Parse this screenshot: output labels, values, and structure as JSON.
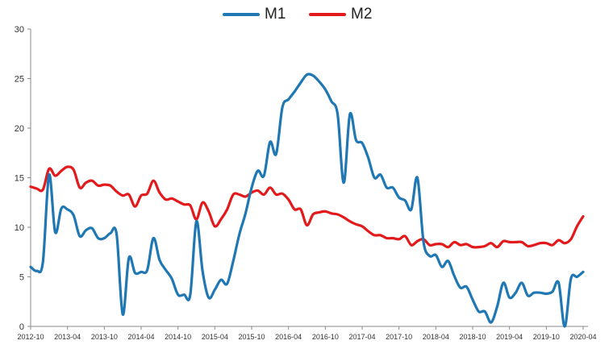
{
  "colors": {
    "m1": "#1f77b4",
    "m2": "#e31a1c",
    "axis": "#8a8a8a",
    "text": "#333333"
  },
  "chart_data": {
    "type": "line",
    "title": "",
    "xlabel": "",
    "ylabel": "",
    "ylim": [
      0,
      30
    ],
    "yticks": [
      "0",
      "5",
      "10",
      "15",
      "20",
      "25",
      "30"
    ],
    "grid": false,
    "legend_position": "top-center",
    "x_tick_labels": [
      "2012-10",
      "2013-04",
      "2013-10",
      "2014-04",
      "2014-10",
      "2015-04",
      "2015-10",
      "2016-04",
      "2016-10",
      "2017-04",
      "2017-10",
      "2018-04",
      "2018-10",
      "2019-04",
      "2019-10",
      "2020-04"
    ],
    "series": [
      {
        "name": "M1",
        "color": "#1f77b4",
        "points": [
          [
            "2012-10",
            6.0
          ],
          [
            "2012-11",
            5.6
          ],
          [
            "2012-12",
            6.5
          ],
          [
            "2013-01",
            15.3
          ],
          [
            "2013-02",
            9.5
          ],
          [
            "2013-03",
            11.9
          ],
          [
            "2013-04",
            11.8
          ],
          [
            "2013-05",
            11.2
          ],
          [
            "2013-06",
            9.1
          ],
          [
            "2013-07",
            9.7
          ],
          [
            "2013-08",
            9.9
          ],
          [
            "2013-09",
            8.9
          ],
          [
            "2013-10",
            8.9
          ],
          [
            "2013-11",
            9.4
          ],
          [
            "2013-12",
            9.3
          ],
          [
            "2014-01",
            1.2
          ],
          [
            "2014-02",
            6.9
          ],
          [
            "2014-03",
            5.4
          ],
          [
            "2014-04",
            5.5
          ],
          [
            "2014-05",
            5.7
          ],
          [
            "2014-06",
            8.9
          ],
          [
            "2014-07",
            6.7
          ],
          [
            "2014-08",
            5.7
          ],
          [
            "2014-09",
            4.8
          ],
          [
            "2014-10",
            3.2
          ],
          [
            "2014-11",
            3.2
          ],
          [
            "2014-12",
            3.2
          ],
          [
            "2015-01",
            10.6
          ],
          [
            "2015-02",
            5.6
          ],
          [
            "2015-03",
            2.9
          ],
          [
            "2015-04",
            3.7
          ],
          [
            "2015-05",
            4.7
          ],
          [
            "2015-06",
            4.3
          ],
          [
            "2015-07",
            6.6
          ],
          [
            "2015-08",
            9.3
          ],
          [
            "2015-09",
            11.4
          ],
          [
            "2015-10",
            14.0
          ],
          [
            "2015-11",
            15.7
          ],
          [
            "2015-12",
            15.2
          ],
          [
            "2016-01",
            18.6
          ],
          [
            "2016-02",
            17.4
          ],
          [
            "2016-03",
            22.1
          ],
          [
            "2016-04",
            22.9
          ],
          [
            "2016-05",
            23.7
          ],
          [
            "2016-06",
            24.6
          ],
          [
            "2016-07",
            25.4
          ],
          [
            "2016-08",
            25.3
          ],
          [
            "2016-09",
            24.7
          ],
          [
            "2016-10",
            23.9
          ],
          [
            "2016-11",
            22.7
          ],
          [
            "2016-12",
            21.4
          ],
          [
            "2017-01",
            14.5
          ],
          [
            "2017-02",
            21.4
          ],
          [
            "2017-03",
            18.8
          ],
          [
            "2017-04",
            18.5
          ],
          [
            "2017-05",
            17.0
          ],
          [
            "2017-06",
            15.0
          ],
          [
            "2017-07",
            15.3
          ],
          [
            "2017-08",
            14.0
          ],
          [
            "2017-09",
            14.0
          ],
          [
            "2017-10",
            13.0
          ],
          [
            "2017-11",
            12.7
          ],
          [
            "2017-12",
            11.8
          ],
          [
            "2018-01",
            15.0
          ],
          [
            "2018-02",
            8.5
          ],
          [
            "2018-03",
            7.1
          ],
          [
            "2018-04",
            7.2
          ],
          [
            "2018-05",
            6.0
          ],
          [
            "2018-06",
            6.6
          ],
          [
            "2018-07",
            5.1
          ],
          [
            "2018-08",
            3.9
          ],
          [
            "2018-09",
            4.0
          ],
          [
            "2018-10",
            2.7
          ],
          [
            "2018-11",
            1.5
          ],
          [
            "2018-12",
            1.5
          ],
          [
            "2019-01",
            0.4
          ],
          [
            "2019-02",
            2.0
          ],
          [
            "2019-03",
            4.4
          ],
          [
            "2019-04",
            2.9
          ],
          [
            "2019-05",
            3.4
          ],
          [
            "2019-06",
            4.4
          ],
          [
            "2019-07",
            3.1
          ],
          [
            "2019-08",
            3.4
          ],
          [
            "2019-09",
            3.4
          ],
          [
            "2019-10",
            3.3
          ],
          [
            "2019-11",
            3.5
          ],
          [
            "2019-12",
            4.4
          ],
          [
            "2020-01",
            0.0
          ],
          [
            "2020-02",
            4.8
          ],
          [
            "2020-03",
            5.0
          ],
          [
            "2020-04",
            5.5
          ]
        ]
      },
      {
        "name": "M2",
        "color": "#e31a1c",
        "points": [
          [
            "2012-10",
            14.1
          ],
          [
            "2012-11",
            13.9
          ],
          [
            "2012-12",
            13.8
          ],
          [
            "2013-01",
            15.9
          ],
          [
            "2013-02",
            15.2
          ],
          [
            "2013-03",
            15.7
          ],
          [
            "2013-04",
            16.1
          ],
          [
            "2013-05",
            15.8
          ],
          [
            "2013-06",
            14.0
          ],
          [
            "2013-07",
            14.5
          ],
          [
            "2013-08",
            14.7
          ],
          [
            "2013-09",
            14.2
          ],
          [
            "2013-10",
            14.3
          ],
          [
            "2013-11",
            14.2
          ],
          [
            "2013-12",
            13.6
          ],
          [
            "2014-01",
            13.2
          ],
          [
            "2014-02",
            13.3
          ],
          [
            "2014-03",
            12.1
          ],
          [
            "2014-04",
            13.2
          ],
          [
            "2014-05",
            13.4
          ],
          [
            "2014-06",
            14.7
          ],
          [
            "2014-07",
            13.5
          ],
          [
            "2014-08",
            12.8
          ],
          [
            "2014-09",
            12.9
          ],
          [
            "2014-10",
            12.6
          ],
          [
            "2014-11",
            12.3
          ],
          [
            "2014-12",
            12.2
          ],
          [
            "2015-01",
            10.8
          ],
          [
            "2015-02",
            12.5
          ],
          [
            "2015-03",
            11.6
          ],
          [
            "2015-04",
            10.1
          ],
          [
            "2015-05",
            10.8
          ],
          [
            "2015-06",
            11.8
          ],
          [
            "2015-07",
            13.3
          ],
          [
            "2015-08",
            13.3
          ],
          [
            "2015-09",
            13.1
          ],
          [
            "2015-10",
            13.5
          ],
          [
            "2015-11",
            13.7
          ],
          [
            "2015-12",
            13.3
          ],
          [
            "2016-01",
            14.0
          ],
          [
            "2016-02",
            13.3
          ],
          [
            "2016-03",
            13.4
          ],
          [
            "2016-04",
            12.8
          ],
          [
            "2016-05",
            11.8
          ],
          [
            "2016-06",
            11.8
          ],
          [
            "2016-07",
            10.2
          ],
          [
            "2016-08",
            11.3
          ],
          [
            "2016-09",
            11.5
          ],
          [
            "2016-10",
            11.6
          ],
          [
            "2016-11",
            11.4
          ],
          [
            "2016-12",
            11.3
          ],
          [
            "2017-01",
            11.0
          ],
          [
            "2017-02",
            10.6
          ],
          [
            "2017-03",
            10.3
          ],
          [
            "2017-04",
            10.1
          ],
          [
            "2017-05",
            9.6
          ],
          [
            "2017-06",
            9.2
          ],
          [
            "2017-07",
            9.2
          ],
          [
            "2017-08",
            8.9
          ],
          [
            "2017-09",
            8.9
          ],
          [
            "2017-10",
            8.8
          ],
          [
            "2017-11",
            9.1
          ],
          [
            "2017-12",
            8.2
          ],
          [
            "2018-01",
            8.6
          ],
          [
            "2018-02",
            8.8
          ],
          [
            "2018-03",
            8.2
          ],
          [
            "2018-04",
            8.3
          ],
          [
            "2018-05",
            8.3
          ],
          [
            "2018-06",
            8.0
          ],
          [
            "2018-07",
            8.5
          ],
          [
            "2018-08",
            8.2
          ],
          [
            "2018-09",
            8.3
          ],
          [
            "2018-10",
            8.0
          ],
          [
            "2018-11",
            8.0
          ],
          [
            "2018-12",
            8.1
          ],
          [
            "2019-01",
            8.4
          ],
          [
            "2019-02",
            8.0
          ],
          [
            "2019-03",
            8.6
          ],
          [
            "2019-04",
            8.5
          ],
          [
            "2019-05",
            8.5
          ],
          [
            "2019-06",
            8.5
          ],
          [
            "2019-07",
            8.1
          ],
          [
            "2019-08",
            8.2
          ],
          [
            "2019-09",
            8.4
          ],
          [
            "2019-10",
            8.4
          ],
          [
            "2019-11",
            8.2
          ],
          [
            "2019-12",
            8.7
          ],
          [
            "2020-01",
            8.4
          ],
          [
            "2020-02",
            8.8
          ],
          [
            "2020-03",
            10.1
          ],
          [
            "2020-04",
            11.1
          ]
        ]
      }
    ]
  }
}
